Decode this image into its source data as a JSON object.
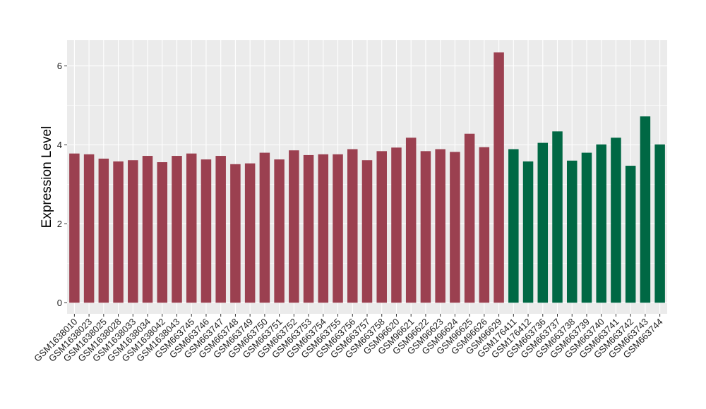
{
  "chart_data": {
    "type": "bar",
    "ylabel": "Expression Level",
    "xlabel": "",
    "ylim": [
      0,
      6.5
    ],
    "yticks": [
      0,
      2,
      4,
      6
    ],
    "grid": true,
    "colors": {
      "group1": "#9b4050",
      "group2": "#006844",
      "panel": "#ebebeb",
      "grid": "#ffffff"
    },
    "categories": [
      "GSM1638010",
      "GSM1638023",
      "GSM1638025",
      "GSM1638028",
      "GSM1638033",
      "GSM1638034",
      "GSM1638042",
      "GSM1638043",
      "GSM663745",
      "GSM663746",
      "GSM663747",
      "GSM663748",
      "GSM663749",
      "GSM663750",
      "GSM663751",
      "GSM663752",
      "GSM663753",
      "GSM663754",
      "GSM663755",
      "GSM663756",
      "GSM663757",
      "GSM663758",
      "GSM96620",
      "GSM96621",
      "GSM96622",
      "GSM96623",
      "GSM96624",
      "GSM96625",
      "GSM96626",
      "GSM96629",
      "GSM176411",
      "GSM176412",
      "GSM663736",
      "GSM663737",
      "GSM663738",
      "GSM663739",
      "GSM663740",
      "GSM663741",
      "GSM663742",
      "GSM663743",
      "GSM663744"
    ],
    "values": [
      3.78,
      3.76,
      3.65,
      3.58,
      3.61,
      3.72,
      3.56,
      3.72,
      3.78,
      3.63,
      3.72,
      3.51,
      3.53,
      3.8,
      3.63,
      3.86,
      3.74,
      3.76,
      3.76,
      3.89,
      3.61,
      3.84,
      3.93,
      4.18,
      3.84,
      3.89,
      3.82,
      4.28,
      3.94,
      6.34,
      3.89,
      3.58,
      4.05,
      4.34,
      3.6,
      3.8,
      4.01,
      4.18,
      3.47,
      4.72,
      4.01
    ],
    "groups": [
      1,
      1,
      1,
      1,
      1,
      1,
      1,
      1,
      1,
      1,
      1,
      1,
      1,
      1,
      1,
      1,
      1,
      1,
      1,
      1,
      1,
      1,
      1,
      1,
      1,
      1,
      1,
      1,
      1,
      1,
      2,
      2,
      2,
      2,
      2,
      2,
      2,
      2,
      2,
      2,
      2
    ]
  }
}
